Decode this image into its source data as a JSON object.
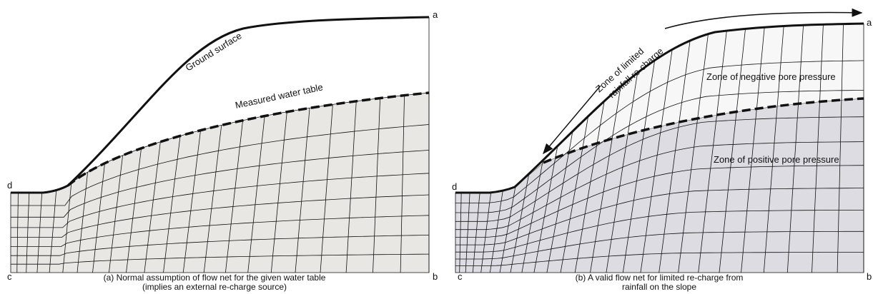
{
  "panel_a": {
    "labels": {
      "a": "a",
      "b": "b",
      "c": "c",
      "d": "d"
    },
    "ground_surface": "Ground surface",
    "water_table": "Measured water table",
    "caption": [
      "(a) Normal assumption of flow net for the given water table",
      "(implies an external re-charge source)"
    ]
  },
  "panel_b": {
    "labels": {
      "a": "a",
      "b": "b",
      "c": "c",
      "d": "d"
    },
    "zone_recharge": [
      "Zone of limited",
      "rainfall re-charge"
    ],
    "zone_negative": "Zone of negative pore pressure",
    "zone_positive": "Zone of positive pore pressure",
    "caption": [
      "(b) A valid flow net for limited re-charge from",
      "rainfall on the slope"
    ]
  }
}
